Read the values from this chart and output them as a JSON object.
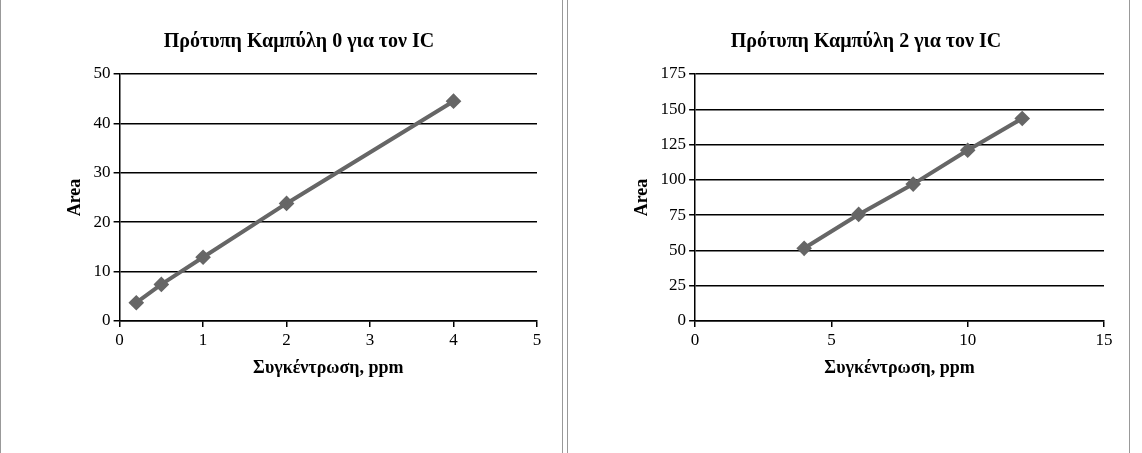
{
  "chart_data": [
    {
      "type": "line",
      "title": "Πρότυπη Καμπύλη 0 για τον IC",
      "xlabel": "Συγκέντρωση, ppm",
      "ylabel": "Area",
      "x": [
        0.2,
        0.5,
        1,
        2,
        4
      ],
      "series": [
        {
          "color": "#666666",
          "values": [
            3.7,
            7.4,
            12.9,
            23.8,
            44.5
          ]
        }
      ],
      "xlim": [
        0,
        5
      ],
      "xticks": [
        0,
        1,
        2,
        3,
        4,
        5
      ],
      "ylim": [
        0,
        50
      ],
      "yticks": [
        0,
        10,
        20,
        30,
        40,
        50
      ],
      "grid": "y",
      "legend": false,
      "marker": "diamond",
      "line_style": "solid"
    },
    {
      "type": "line",
      "title": "Πρότυπη Καμπύλη 2 για τον IC",
      "xlabel": "Συγκέντρωση, ppm",
      "ylabel": "Area",
      "x": [
        4,
        6,
        8,
        10,
        12
      ],
      "series": [
        {
          "color": "#666666",
          "values": [
            51.5,
            75.5,
            97,
            121,
            143.5
          ]
        }
      ],
      "xlim": [
        0,
        15
      ],
      "xticks": [
        0,
        5,
        10,
        15
      ],
      "ylim": [
        0,
        175
      ],
      "yticks": [
        0,
        25,
        50,
        75,
        100,
        125,
        150,
        175
      ],
      "grid": "y",
      "legend": false,
      "marker": "diamond",
      "line_style": "solid"
    }
  ]
}
